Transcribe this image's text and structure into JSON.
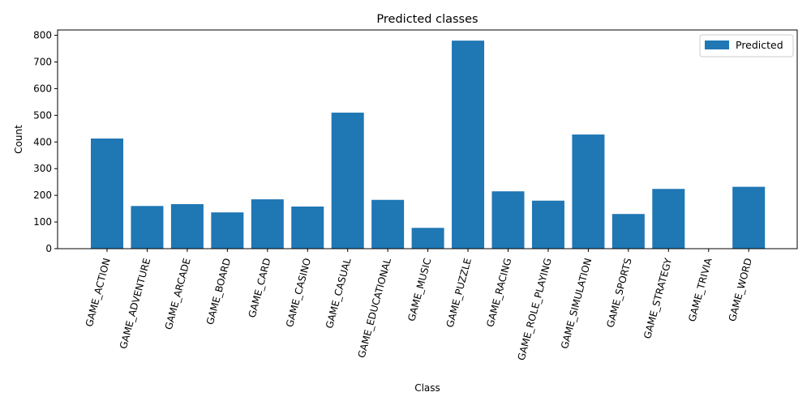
{
  "chart_data": {
    "type": "bar",
    "title": "Predicted classes",
    "xlabel": "Class",
    "ylabel": "Count",
    "ylim": [
      0,
      820
    ],
    "yticks": [
      0,
      100,
      200,
      300,
      400,
      500,
      600,
      700,
      800
    ],
    "categories": [
      "GAME_ACTION",
      "GAME_ADVENTURE",
      "GAME_ARCADE",
      "GAME_BOARD",
      "GAME_CARD",
      "GAME_CASINO",
      "GAME_CASUAL",
      "GAME_EDUCATIONAL",
      "GAME_MUSIC",
      "GAME_PUZZLE",
      "GAME_RACING",
      "GAME_ROLE_PLAYING",
      "GAME_SIMULATION",
      "GAME_SPORTS",
      "GAME_STRATEGY",
      "GAME_TRIVIA",
      "GAME_WORD"
    ],
    "series": [
      {
        "name": "Predicted",
        "color": "#1f77b4",
        "values": [
          413,
          160,
          167,
          136,
          185,
          158,
          510,
          183,
          78,
          780,
          215,
          180,
          428,
          130,
          224,
          0,
          232
        ]
      }
    ],
    "grid": false,
    "legend": "top-right"
  }
}
